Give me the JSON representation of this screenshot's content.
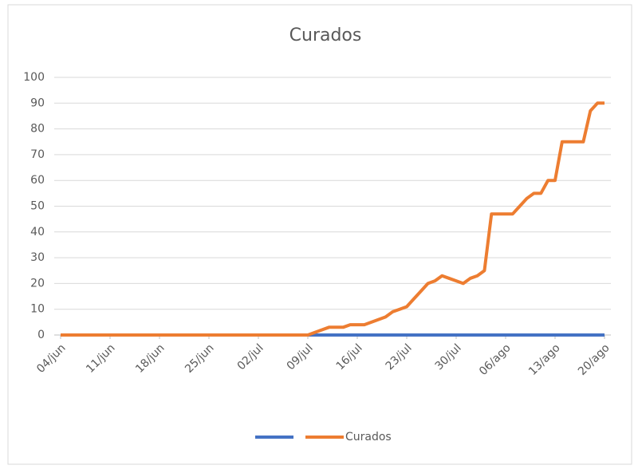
{
  "chart_data": {
    "type": "line",
    "title": "Curados",
    "categories": [
      "04/jun",
      null,
      null,
      null,
      null,
      null,
      null,
      "11/jun",
      null,
      null,
      null,
      null,
      null,
      null,
      "18/jun",
      null,
      null,
      null,
      null,
      null,
      null,
      "25/jun",
      null,
      null,
      null,
      null,
      null,
      null,
      "02/jul",
      null,
      null,
      null,
      null,
      null,
      null,
      "09/jul",
      null,
      null,
      null,
      null,
      null,
      null,
      "16/jul",
      null,
      null,
      null,
      null,
      null,
      null,
      "23/jul",
      null,
      null,
      null,
      null,
      null,
      null,
      "30/jul",
      null,
      null,
      null,
      null,
      null,
      null,
      "06/ago",
      null,
      null,
      null,
      null,
      null,
      null,
      "13/ago",
      null,
      null,
      null,
      null,
      null,
      null,
      "20/ago"
    ],
    "series": [
      {
        "color": "#4472c4",
        "values": [
          0,
          0,
          0,
          0,
          0,
          0,
          0,
          0,
          0,
          0,
          0,
          0,
          0,
          0,
          0,
          0,
          0,
          0,
          0,
          0,
          0,
          0,
          0,
          0,
          0,
          0,
          0,
          0,
          0,
          0,
          0,
          0,
          0,
          0,
          0,
          0,
          0,
          0,
          0,
          0,
          0,
          0,
          0,
          0,
          0,
          0,
          0,
          0,
          0,
          0,
          0,
          0,
          0,
          0,
          0,
          0,
          0,
          0,
          0,
          0,
          0,
          0,
          0,
          0,
          0,
          0,
          0,
          0,
          0,
          0,
          0,
          0,
          0,
          0,
          0,
          0,
          0,
          0
        ]
      },
      {
        "name": "Curados",
        "color": "#ed7d31",
        "values": [
          0,
          0,
          0,
          0,
          0,
          0,
          0,
          0,
          0,
          0,
          0,
          0,
          0,
          0,
          0,
          0,
          0,
          0,
          0,
          0,
          0,
          0,
          0,
          0,
          0,
          0,
          0,
          0,
          0,
          0,
          0,
          0,
          0,
          0,
          0,
          0,
          1,
          2,
          3,
          3,
          3,
          4,
          4,
          4,
          5,
          6,
          7,
          9,
          10,
          11,
          14,
          17,
          20,
          21,
          23,
          22,
          21,
          20,
          22,
          23,
          25,
          47,
          47,
          47,
          47,
          50,
          53,
          55,
          55,
          60,
          60,
          75,
          75,
          75,
          75,
          87,
          90,
          90
        ]
      }
    ],
    "ylim": [
      0,
      100
    ],
    "yticks": [
      0,
      10,
      20,
      30,
      40,
      50,
      60,
      70,
      80,
      90,
      100
    ],
    "grid": true,
    "legend": "bottom"
  }
}
